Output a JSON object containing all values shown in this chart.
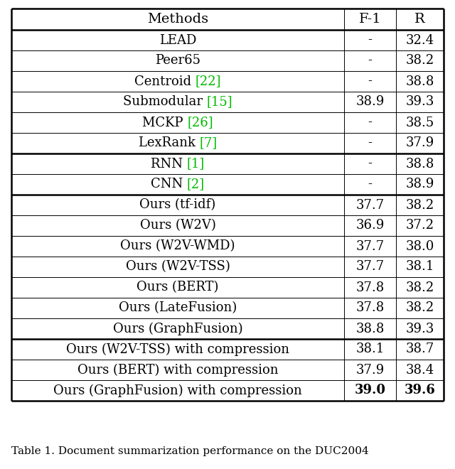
{
  "title": "Table 1. Document summarization performance on the DUC2004",
  "headers": [
    "Methods",
    "F-1",
    "R"
  ],
  "rows": [
    {
      "method": "LEAD",
      "f1": "-",
      "r": "32.4",
      "bold_f1": false,
      "bold_r": false,
      "green_ref": null
    },
    {
      "method": "Peer65",
      "f1": "-",
      "r": "38.2",
      "bold_f1": false,
      "bold_r": false,
      "green_ref": null
    },
    {
      "method": "Centroid [22]",
      "f1": "-",
      "r": "38.8",
      "bold_f1": false,
      "bold_r": false,
      "green_ref": "[22]"
    },
    {
      "method": "Submodular [15]",
      "f1": "38.9",
      "r": "39.3",
      "bold_f1": false,
      "bold_r": false,
      "green_ref": "[15]"
    },
    {
      "method": "MCKP [26]",
      "f1": "-",
      "r": "38.5",
      "bold_f1": false,
      "bold_r": false,
      "green_ref": "[26]"
    },
    {
      "method": "LexRank [7]",
      "f1": "-",
      "r": "37.9",
      "bold_f1": false,
      "bold_r": false,
      "green_ref": "[7]"
    },
    {
      "method": "RNN [1]",
      "f1": "-",
      "r": "38.8",
      "bold_f1": false,
      "bold_r": false,
      "green_ref": "[1]"
    },
    {
      "method": "CNN [2]",
      "f1": "-",
      "r": "38.9",
      "bold_f1": false,
      "bold_r": false,
      "green_ref": "[2]"
    },
    {
      "method": "Ours (tf-idf)",
      "f1": "37.7",
      "r": "38.2",
      "bold_f1": false,
      "bold_r": false,
      "green_ref": null
    },
    {
      "method": "Ours (W2V)",
      "f1": "36.9",
      "r": "37.2",
      "bold_f1": false,
      "bold_r": false,
      "green_ref": null
    },
    {
      "method": "Ours (W2V-WMD)",
      "f1": "37.7",
      "r": "38.0",
      "bold_f1": false,
      "bold_r": false,
      "green_ref": null
    },
    {
      "method": "Ours (W2V-TSS)",
      "f1": "37.7",
      "r": "38.1",
      "bold_f1": false,
      "bold_r": false,
      "green_ref": null
    },
    {
      "method": "Ours (BERT)",
      "f1": "37.8",
      "r": "38.2",
      "bold_f1": false,
      "bold_r": false,
      "green_ref": null
    },
    {
      "method": "Ours (LateFusion)",
      "f1": "37.8",
      "r": "38.2",
      "bold_f1": false,
      "bold_r": false,
      "green_ref": null
    },
    {
      "method": "Ours (GraphFusion)",
      "f1": "38.8",
      "r": "39.3",
      "bold_f1": false,
      "bold_r": false,
      "green_ref": null
    },
    {
      "method": "Ours (W2V-TSS) with compression",
      "f1": "38.1",
      "r": "38.7",
      "bold_f1": false,
      "bold_r": false,
      "green_ref": null
    },
    {
      "method": "Ours (BERT) with compression",
      "f1": "37.9",
      "r": "38.4",
      "bold_f1": false,
      "bold_r": false,
      "green_ref": null
    },
    {
      "method": "Ours (GraphFusion) with compression",
      "f1": "39.0",
      "r": "39.6",
      "bold_f1": true,
      "bold_r": true,
      "green_ref": null
    }
  ],
  "section_breaks_after": [
    5,
    7,
    14
  ],
  "green_color": "#00bb00",
  "black_color": "#000000",
  "bg_color": "#ffffff",
  "font_size": 13,
  "header_font_size": 14,
  "title_font_size": 11
}
